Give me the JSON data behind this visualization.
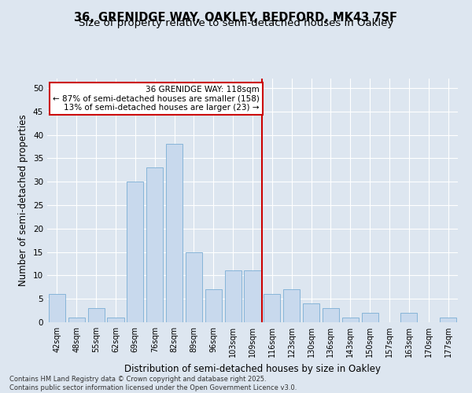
{
  "title": "36, GRENIDGE WAY, OAKLEY, BEDFORD, MK43 7SF",
  "subtitle": "Size of property relative to semi-detached houses in Oakley",
  "xlabel": "Distribution of semi-detached houses by size in Oakley",
  "ylabel": "Number of semi-detached properties",
  "categories": [
    "42sqm",
    "48sqm",
    "55sqm",
    "62sqm",
    "69sqm",
    "76sqm",
    "82sqm",
    "89sqm",
    "96sqm",
    "103sqm",
    "109sqm",
    "116sqm",
    "123sqm",
    "130sqm",
    "136sqm",
    "143sqm",
    "150sqm",
    "157sqm",
    "163sqm",
    "170sqm",
    "177sqm"
  ],
  "values": [
    6,
    1,
    3,
    1,
    30,
    33,
    38,
    15,
    7,
    11,
    11,
    6,
    7,
    4,
    3,
    1,
    2,
    0,
    2,
    0,
    1
  ],
  "bar_color": "#c8d9ed",
  "bar_edge_color": "#7aadd4",
  "vline_index": 11,
  "annotation_text": "36 GRENIDGE WAY: 118sqm\n← 87% of semi-detached houses are smaller (158)\n13% of semi-detached houses are larger (23) →",
  "annotation_box_color": "#ffffff",
  "annotation_box_edge_color": "#cc0000",
  "bg_color": "#dde6f0",
  "plot_bg_color": "#dde6f0",
  "grid_color": "#ffffff",
  "title_fontsize": 10.5,
  "subtitle_fontsize": 9.5,
  "tick_fontsize": 7,
  "ylabel_fontsize": 8.5,
  "xlabel_fontsize": 8.5,
  "annot_fontsize": 7.5,
  "footer_text": "Contains HM Land Registry data © Crown copyright and database right 2025.\nContains public sector information licensed under the Open Government Licence v3.0.",
  "footer_fontsize": 6,
  "ylim": [
    0,
    52
  ],
  "yticks": [
    0,
    5,
    10,
    15,
    20,
    25,
    30,
    35,
    40,
    45,
    50
  ]
}
